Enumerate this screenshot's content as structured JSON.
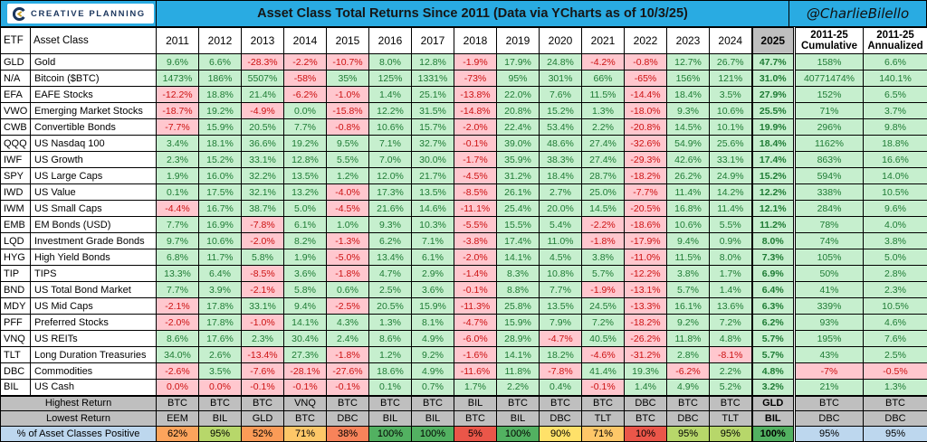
{
  "header": {
    "logo_text": "CREATIVE PLANNING",
    "title": "Asset Class Total Returns Since 2011 (Data via YCharts as of 10/3/25)",
    "handle": "@CharlieBilello"
  },
  "table_headers": {
    "etf": "ETF",
    "asset_class": "Asset Class",
    "years": [
      "2011",
      "2012",
      "2013",
      "2014",
      "2015",
      "2016",
      "2017",
      "2018",
      "2019",
      "2020",
      "2021",
      "2022",
      "2023",
      "2024",
      "2025"
    ],
    "extra": [
      {
        "line1": "2011-25",
        "line2": "Cumulative"
      },
      {
        "line1": "2011-25",
        "line2": "Annualized"
      }
    ]
  },
  "chart_data": {
    "type": "table",
    "title": "Asset Class Total Returns Since 2011 (Data via YCharts as of 10/3/25)",
    "columns": [
      "2011",
      "2012",
      "2013",
      "2014",
      "2015",
      "2016",
      "2017",
      "2018",
      "2019",
      "2020",
      "2021",
      "2022",
      "2023",
      "2024",
      "2025",
      "2011-25 Cumulative",
      "2011-25 Annualized"
    ],
    "rows": [
      {
        "etf": "GLD",
        "name": "Gold",
        "values": [
          "9.6%",
          "6.6%",
          "-28.3%",
          "-2.2%",
          "-10.7%",
          "8.0%",
          "12.8%",
          "-1.9%",
          "17.9%",
          "24.8%",
          "-4.2%",
          "-0.8%",
          "12.7%",
          "26.7%",
          "47.7%",
          "158%",
          "6.6%"
        ]
      },
      {
        "etf": "N/A",
        "name": "Bitcoin ($BTC)",
        "values": [
          "1473%",
          "186%",
          "5507%",
          "-58%",
          "35%",
          "125%",
          "1331%",
          "-73%",
          "95%",
          "301%",
          "66%",
          "-65%",
          "156%",
          "121%",
          "31.0%",
          "40771474%",
          "140.1%"
        ]
      },
      {
        "etf": "EFA",
        "name": "EAFE Stocks",
        "values": [
          "-12.2%",
          "18.8%",
          "21.4%",
          "-6.2%",
          "-1.0%",
          "1.4%",
          "25.1%",
          "-13.8%",
          "22.0%",
          "7.6%",
          "11.5%",
          "-14.4%",
          "18.4%",
          "3.5%",
          "27.9%",
          "152%",
          "6.5%"
        ]
      },
      {
        "etf": "VWO",
        "name": "Emerging Market Stocks",
        "values": [
          "-18.7%",
          "19.2%",
          "-4.9%",
          "0.0%",
          "-15.8%",
          "12.2%",
          "31.5%",
          "-14.8%",
          "20.8%",
          "15.2%",
          "1.3%",
          "-18.0%",
          "9.3%",
          "10.6%",
          "25.5%",
          "71%",
          "3.7%"
        ]
      },
      {
        "etf": "CWB",
        "name": "Convertible Bonds",
        "values": [
          "-7.7%",
          "15.9%",
          "20.5%",
          "7.7%",
          "-0.8%",
          "10.6%",
          "15.7%",
          "-2.0%",
          "22.4%",
          "53.4%",
          "2.2%",
          "-20.8%",
          "14.5%",
          "10.1%",
          "19.9%",
          "296%",
          "9.8%"
        ]
      },
      {
        "etf": "QQQ",
        "name": "US Nasdaq 100",
        "values": [
          "3.4%",
          "18.1%",
          "36.6%",
          "19.2%",
          "9.5%",
          "7.1%",
          "32.7%",
          "-0.1%",
          "39.0%",
          "48.6%",
          "27.4%",
          "-32.6%",
          "54.9%",
          "25.6%",
          "18.4%",
          "1162%",
          "18.8%"
        ]
      },
      {
        "etf": "IWF",
        "name": "US Growth",
        "values": [
          "2.3%",
          "15.2%",
          "33.1%",
          "12.8%",
          "5.5%",
          "7.0%",
          "30.0%",
          "-1.7%",
          "35.9%",
          "38.3%",
          "27.4%",
          "-29.3%",
          "42.6%",
          "33.1%",
          "17.4%",
          "863%",
          "16.6%"
        ]
      },
      {
        "etf": "SPY",
        "name": "US Large Caps",
        "values": [
          "1.9%",
          "16.0%",
          "32.2%",
          "13.5%",
          "1.2%",
          "12.0%",
          "21.7%",
          "-4.5%",
          "31.2%",
          "18.4%",
          "28.7%",
          "-18.2%",
          "26.2%",
          "24.9%",
          "15.2%",
          "594%",
          "14.0%"
        ]
      },
      {
        "etf": "IWD",
        "name": "US Value",
        "values": [
          "0.1%",
          "17.5%",
          "32.1%",
          "13.2%",
          "-4.0%",
          "17.3%",
          "13.5%",
          "-8.5%",
          "26.1%",
          "2.7%",
          "25.0%",
          "-7.7%",
          "11.4%",
          "14.2%",
          "12.2%",
          "338%",
          "10.5%"
        ]
      },
      {
        "etf": "IWM",
        "name": "US Small Caps",
        "values": [
          "-4.4%",
          "16.7%",
          "38.7%",
          "5.0%",
          "-4.5%",
          "21.6%",
          "14.6%",
          "-11.1%",
          "25.4%",
          "20.0%",
          "14.5%",
          "-20.5%",
          "16.8%",
          "11.4%",
          "12.1%",
          "284%",
          "9.6%"
        ]
      },
      {
        "etf": "EMB",
        "name": "EM Bonds (USD)",
        "values": [
          "7.7%",
          "16.9%",
          "-7.8%",
          "6.1%",
          "1.0%",
          "9.3%",
          "10.3%",
          "-5.5%",
          "15.5%",
          "5.4%",
          "-2.2%",
          "-18.6%",
          "10.6%",
          "5.5%",
          "11.2%",
          "78%",
          "4.0%"
        ]
      },
      {
        "etf": "LQD",
        "name": "Investment Grade Bonds",
        "values": [
          "9.7%",
          "10.6%",
          "-2.0%",
          "8.2%",
          "-1.3%",
          "6.2%",
          "7.1%",
          "-3.8%",
          "17.4%",
          "11.0%",
          "-1.8%",
          "-17.9%",
          "9.4%",
          "0.9%",
          "8.0%",
          "74%",
          "3.8%"
        ]
      },
      {
        "etf": "HYG",
        "name": "High Yield Bonds",
        "values": [
          "6.8%",
          "11.7%",
          "5.8%",
          "1.9%",
          "-5.0%",
          "13.4%",
          "6.1%",
          "-2.0%",
          "14.1%",
          "4.5%",
          "3.8%",
          "-11.0%",
          "11.5%",
          "8.0%",
          "7.3%",
          "105%",
          "5.0%"
        ]
      },
      {
        "etf": "TIP",
        "name": "TIPS",
        "values": [
          "13.3%",
          "6.4%",
          "-8.5%",
          "3.6%",
          "-1.8%",
          "4.7%",
          "2.9%",
          "-1.4%",
          "8.3%",
          "10.8%",
          "5.7%",
          "-12.2%",
          "3.8%",
          "1.7%",
          "6.9%",
          "50%",
          "2.8%"
        ]
      },
      {
        "etf": "BND",
        "name": "US Total Bond Market",
        "values": [
          "7.7%",
          "3.9%",
          "-2.1%",
          "5.8%",
          "0.6%",
          "2.5%",
          "3.6%",
          "-0.1%",
          "8.8%",
          "7.7%",
          "-1.9%",
          "-13.1%",
          "5.7%",
          "1.4%",
          "6.4%",
          "41%",
          "2.3%"
        ]
      },
      {
        "etf": "MDY",
        "name": "US Mid Caps",
        "values": [
          "-2.1%",
          "17.8%",
          "33.1%",
          "9.4%",
          "-2.5%",
          "20.5%",
          "15.9%",
          "-11.3%",
          "25.8%",
          "13.5%",
          "24.5%",
          "-13.3%",
          "16.1%",
          "13.6%",
          "6.3%",
          "339%",
          "10.5%"
        ]
      },
      {
        "etf": "PFF",
        "name": "Preferred Stocks",
        "values": [
          "-2.0%",
          "17.8%",
          "-1.0%",
          "14.1%",
          "4.3%",
          "1.3%",
          "8.1%",
          "-4.7%",
          "15.9%",
          "7.9%",
          "7.2%",
          "-18.2%",
          "9.2%",
          "7.2%",
          "6.2%",
          "93%",
          "4.6%"
        ]
      },
      {
        "etf": "VNQ",
        "name": "US REITs",
        "values": [
          "8.6%",
          "17.6%",
          "2.3%",
          "30.4%",
          "2.4%",
          "8.6%",
          "4.9%",
          "-6.0%",
          "28.9%",
          "-4.7%",
          "40.5%",
          "-26.2%",
          "11.8%",
          "4.8%",
          "5.7%",
          "195%",
          "7.6%"
        ]
      },
      {
        "etf": "TLT",
        "name": "Long Duration Treasuries",
        "values": [
          "34.0%",
          "2.6%",
          "-13.4%",
          "27.3%",
          "-1.8%",
          "1.2%",
          "9.2%",
          "-1.6%",
          "14.1%",
          "18.2%",
          "-4.6%",
          "-31.2%",
          "2.8%",
          "-8.1%",
          "5.7%",
          "43%",
          "2.5%"
        ]
      },
      {
        "etf": "DBC",
        "name": "Commodities",
        "values": [
          "-2.6%",
          "3.5%",
          "-7.6%",
          "-28.1%",
          "-27.6%",
          "18.6%",
          "4.9%",
          "-11.6%",
          "11.8%",
          "-7.8%",
          "41.4%",
          "19.3%",
          "-6.2%",
          "2.2%",
          "4.8%",
          "-7%",
          "-0.5%"
        ]
      },
      {
        "etf": "BIL",
        "name": "US Cash",
        "values": [
          "0.0%",
          "0.0%",
          "-0.1%",
          "-0.1%",
          "-0.1%",
          "0.1%",
          "0.7%",
          "1.7%",
          "2.2%",
          "0.4%",
          "-0.1%",
          "1.4%",
          "4.9%",
          "5.2%",
          "3.2%",
          "21%",
          "1.3%"
        ],
        "extra_neg": [
          0,
          1
        ]
      }
    ],
    "summary": {
      "highest_label": "Highest Return",
      "highest": [
        "BTC",
        "BTC",
        "BTC",
        "VNQ",
        "BTC",
        "BTC",
        "BTC",
        "BIL",
        "BTC",
        "BTC",
        "BTC",
        "DBC",
        "BTC",
        "BTC",
        "GLD",
        "BTC",
        "BTC"
      ],
      "lowest_label": "Lowest Return",
      "lowest": [
        "EEM",
        "BIL",
        "GLD",
        "BTC",
        "DBC",
        "BIL",
        "BIL",
        "BTC",
        "BIL",
        "DBC",
        "TLT",
        "BTC",
        "DBC",
        "TLT",
        "BIL",
        "DBC",
        "DBC"
      ],
      "pct_label": "% of Asset Classes Positive",
      "pct": [
        "62%",
        "95%",
        "52%",
        "71%",
        "38%",
        "100%",
        "100%",
        "5%",
        "100%",
        "90%",
        "71%",
        "10%",
        "95%",
        "95%",
        "100%",
        "95%",
        "95%"
      ],
      "pct_colors": [
        "#FCA45C",
        "#B7D76A",
        "#FB9B57",
        "#FEC768",
        "#F8835A",
        "#52B161",
        "#52B161",
        "#EA5649",
        "#52B161",
        "#FFE169",
        "#FEC768",
        "#EA5649",
        "#B7D76A",
        "#B7D76A",
        "#52B161",
        "#BDD7EE",
        "#BDD7EE"
      ]
    }
  },
  "colors": {
    "header_blue": "#29ABE2",
    "positive_bg": "#C6EFCE",
    "positive_text": "#1E7B34",
    "negative_bg": "#FFC7CE",
    "negative_text": "#CC1111",
    "col2025_header_bg": "#BFBFBF",
    "summary_gray_bg": "#BFBFBF",
    "pct_label_blue_bg": "#BDD7EE",
    "logo_navy": "#1B365D",
    "logo_gold": "#C9A227"
  }
}
